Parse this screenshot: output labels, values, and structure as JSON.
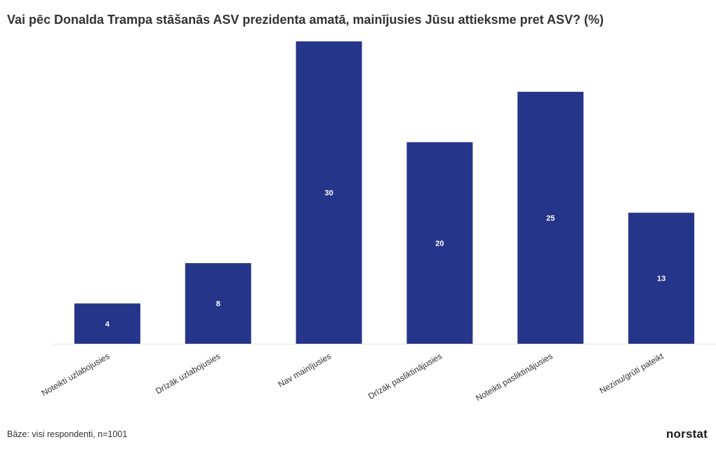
{
  "title": "Vai pēc Donalda Trampa stāšanās ASV prezidenta amatā, mainījusies Jūsu attieksme pret ASV? (%)",
  "footer_note": "Bāze: visi respondenti, n=1001",
  "brand": "norstat",
  "colors": {
    "bar": "#25358a",
    "bar_label": "#ffffff",
    "axis_line": "#e6e6e6",
    "text": "#333333"
  },
  "chart_data": {
    "type": "bar",
    "categories": [
      "Noteikti uzlabojusies",
      "Drīzāk uzlabojusies",
      "Nav mainījusies",
      "Drīzāk pasliktinājusies",
      "Noteikti pasliktinājusies",
      "Nezinu/grūti pateikt"
    ],
    "values": [
      4,
      8,
      30,
      20,
      25,
      13
    ],
    "title": "Vai pēc Donalda Trampa stāšanās ASV prezidenta amatā, mainījusies Jūsu attieksme pret ASV? (%)",
    "xlabel": "",
    "ylabel": "",
    "ylim": [
      0,
      30
    ],
    "grid": false,
    "data_labels": true
  }
}
